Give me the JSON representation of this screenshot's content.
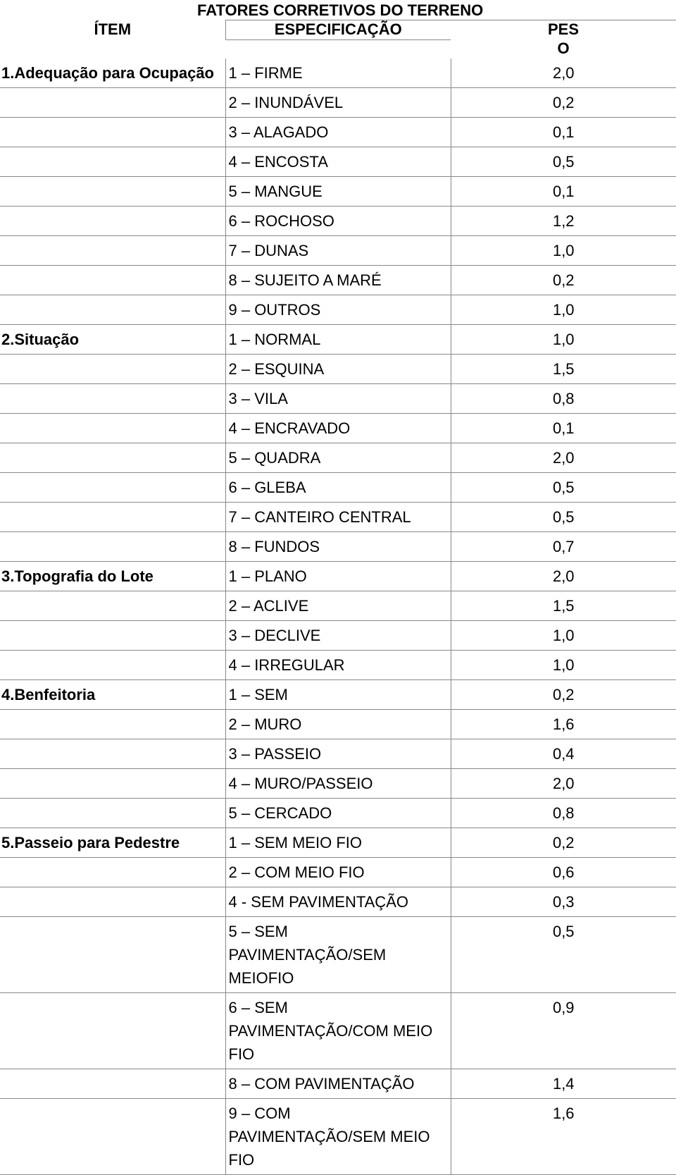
{
  "title": "FATORES CORRETIVOS DO TERRENO",
  "headers": {
    "item": "ÍTEM",
    "espec": "ESPECIFICAÇÃO",
    "peso1": "PES",
    "peso2": "O"
  },
  "groups": [
    {
      "label": "1.Adequação para Ocupação",
      "rows": [
        {
          "spec": "1 –  FIRME",
          "peso": "2,0"
        },
        {
          "spec": "2 – INUNDÁVEL",
          "peso": "0,2"
        },
        {
          "spec": "3 – ALAGADO",
          "peso": "0,1"
        },
        {
          "spec": "4 – ENCOSTA",
          "peso": "0,5"
        },
        {
          "spec": "5 – MANGUE",
          "peso": "0,1"
        },
        {
          "spec": "6 – ROCHOSO",
          "peso": "1,2"
        },
        {
          "spec": "7 – DUNAS",
          "peso": "1,0"
        },
        {
          "spec": "8 – SUJEITO A MARÉ",
          "peso": "0,2"
        },
        {
          "spec": "9 – OUTROS",
          "peso": "1,0"
        }
      ]
    },
    {
      "label": "2.Situação",
      "rows": [
        {
          "spec": "1 – NORMAL",
          "peso": "1,0"
        },
        {
          "spec": "2 – ESQUINA",
          "peso": "1,5"
        },
        {
          "spec": "3 – VILA",
          "peso": "0,8"
        },
        {
          "spec": "4 – ENCRAVADO",
          "peso": "0,1"
        },
        {
          "spec": "5 – QUADRA",
          "peso": "2,0"
        },
        {
          "spec": "6 – GLEBA",
          "peso": "0,5"
        },
        {
          "spec": "7 – CANTEIRO CENTRAL",
          "peso": "0,5"
        },
        {
          "spec": "8 – FUNDOS",
          "peso": "0,7"
        }
      ]
    },
    {
      "label": "3.Topografia do Lote",
      "rows": [
        {
          "spec": "1 – PLANO",
          "peso": "2,0"
        },
        {
          "spec": "2 – ACLIVE",
          "peso": "1,5"
        },
        {
          "spec": "3 – DECLIVE",
          "peso": "1,0"
        },
        {
          "spec": "4 – IRREGULAR",
          "peso": "1,0"
        }
      ]
    },
    {
      "label": "4.Benfeitoria",
      "rows": [
        {
          "spec": "1 – SEM",
          "peso": "0,2"
        },
        {
          "spec": "2 – MURO",
          "peso": "1,6"
        },
        {
          "spec": "3 – PASSEIO",
          "peso": "0,4"
        },
        {
          "spec": "4 – MURO/PASSEIO",
          "peso": "2,0"
        },
        {
          "spec": "5 – CERCADO",
          "peso": "0,8"
        }
      ]
    },
    {
      "label": "5.Passeio para Pedestre",
      "rows": [
        {
          "spec": "1 – SEM MEIO FIO",
          "peso": "0,2"
        },
        {
          "spec": "2 – COM MEIO FIO",
          "peso": "0,6"
        },
        {
          "spec": "4 -  SEM PAVIMENTAÇÃO",
          "peso": "0,3"
        },
        {
          "spec": "5 – SEM PAVIMENTAÇÃO/SEM MEIOFIO",
          "peso": "0,5"
        },
        {
          "spec": "6 – SEM PAVIMENTAÇÃO/COM MEIO FIO",
          "peso": "0,9"
        },
        {
          "spec": "8 – COM PAVIMENTAÇÃO",
          "peso": "1,4"
        },
        {
          "spec": "9 – COM PAVIMENTAÇÃO/SEM MEIO FIO",
          "peso": "1,6"
        }
      ]
    }
  ]
}
